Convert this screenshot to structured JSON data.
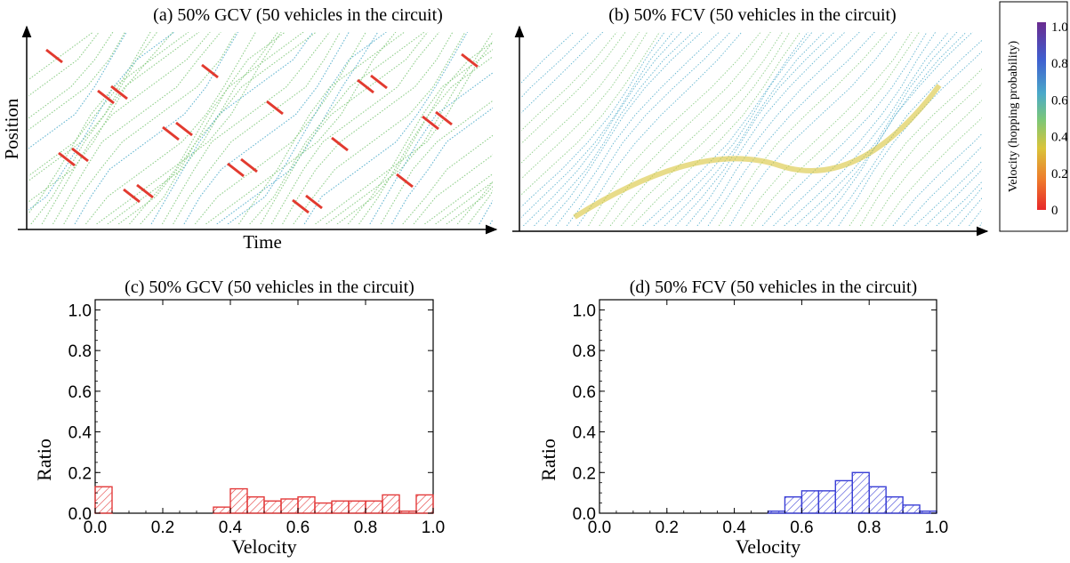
{
  "panels": {
    "a": {
      "title": "(a) 50% GCV (50 vehicles in the circuit)",
      "xlabel": "Time",
      "ylabel": "Position"
    },
    "b": {
      "title": "(b) 50% FCV (50 vehicles in the circuit)"
    }
  },
  "colorbar": {
    "label": "Velocity (hopping probability)",
    "ticks": [
      "1.0",
      "0.8",
      "0.6",
      "0.4",
      "0.2",
      "0"
    ],
    "tick_values": [
      1.0,
      0.8,
      0.6,
      0.4,
      0.2,
      0.0
    ],
    "colors": [
      "#e8282a",
      "#ee7a2c",
      "#d9c43a",
      "#7cc777",
      "#4aa9c9",
      "#3f5fd0",
      "#6a2b8f"
    ]
  },
  "chart_data": [
    {
      "type": "bar",
      "title": "(c) 50% GCV (50 vehicles in the circuit)",
      "xlabel": "Velocity",
      "ylabel": "Ratio",
      "xlim": [
        0,
        1
      ],
      "ylim": [
        0,
        1.05
      ],
      "xticks": [
        "0.0",
        "0.2",
        "0.4",
        "0.6",
        "0.8",
        "1.0"
      ],
      "yticks": [
        "0.0",
        "0.2",
        "0.4",
        "0.6",
        "0.8",
        "1.0"
      ],
      "bin_width": 0.05,
      "color": "#e33b3b",
      "bins": [
        {
          "x": 0.0,
          "value": 0.13
        },
        {
          "x": 0.35,
          "value": 0.03
        },
        {
          "x": 0.4,
          "value": 0.12
        },
        {
          "x": 0.45,
          "value": 0.08
        },
        {
          "x": 0.5,
          "value": 0.06
        },
        {
          "x": 0.55,
          "value": 0.07
        },
        {
          "x": 0.6,
          "value": 0.08
        },
        {
          "x": 0.65,
          "value": 0.05
        },
        {
          "x": 0.7,
          "value": 0.06
        },
        {
          "x": 0.75,
          "value": 0.06
        },
        {
          "x": 0.8,
          "value": 0.06
        },
        {
          "x": 0.85,
          "value": 0.09
        },
        {
          "x": 0.9,
          "value": 0.01
        },
        {
          "x": 0.95,
          "value": 0.09
        }
      ]
    },
    {
      "type": "bar",
      "title": "(d) 50% FCV (50 vehicles in the circuit)",
      "xlabel": "Velocity",
      "ylabel": "Ratio",
      "xlim": [
        0,
        1
      ],
      "ylim": [
        0,
        1.05
      ],
      "xticks": [
        "0.0",
        "0.2",
        "0.4",
        "0.6",
        "0.8",
        "1.0"
      ],
      "yticks": [
        "0.0",
        "0.2",
        "0.4",
        "0.6",
        "0.8",
        "1.0"
      ],
      "bin_width": 0.05,
      "color": "#3a3fd6",
      "bins": [
        {
          "x": 0.5,
          "value": 0.01
        },
        {
          "x": 0.55,
          "value": 0.08
        },
        {
          "x": 0.6,
          "value": 0.11
        },
        {
          "x": 0.65,
          "value": 0.11
        },
        {
          "x": 0.7,
          "value": 0.16
        },
        {
          "x": 0.75,
          "value": 0.2
        },
        {
          "x": 0.8,
          "value": 0.13
        },
        {
          "x": 0.85,
          "value": 0.08
        },
        {
          "x": 0.9,
          "value": 0.04
        },
        {
          "x": 0.95,
          "value": 0.01
        }
      ]
    }
  ]
}
